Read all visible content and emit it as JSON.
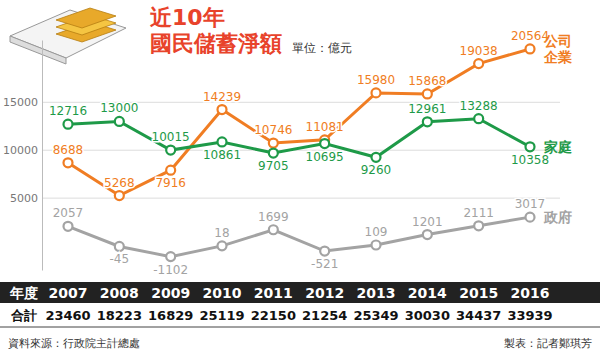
{
  "chart_data": {
    "type": "line",
    "title": "近10年",
    "subtitle": "國民儲蓄淨額",
    "unit": "單位：億元",
    "categories": [
      "2007",
      "2008",
      "2009",
      "2010",
      "2011",
      "2012",
      "2013",
      "2014",
      "2015",
      "2016"
    ],
    "series": [
      {
        "name": "公司企業",
        "color": "#f07d23",
        "values": [
          8688,
          5268,
          7916,
          14239,
          10746,
          11081,
          15980,
          15868,
          19038,
          20564
        ]
      },
      {
        "name": "家庭",
        "color": "#1e9a48",
        "values": [
          12716,
          13000,
          10015,
          10861,
          9705,
          10695,
          9260,
          12961,
          13288,
          10358
        ]
      },
      {
        "name": "政府",
        "color": "#a3a3a3",
        "values": [
          2057,
          -45,
          -1102,
          18,
          1699,
          -521,
          109,
          1201,
          2111,
          3017
        ]
      }
    ],
    "ylim": [
      -2500,
      21500
    ],
    "yticks": [
      5000,
      10000,
      15000
    ],
    "grid": true,
    "data_labels": true,
    "marker": "circle",
    "tick_labels": "y",
    "table_header": "年度",
    "totals_label": "合計",
    "totals": [
      23460,
      18223,
      16829,
      25119,
      22150,
      21254,
      25349,
      30030,
      34437,
      33939
    ],
    "source": "資料來源：行政院主計總處",
    "credit": "製表：記者鄭琪芳"
  }
}
